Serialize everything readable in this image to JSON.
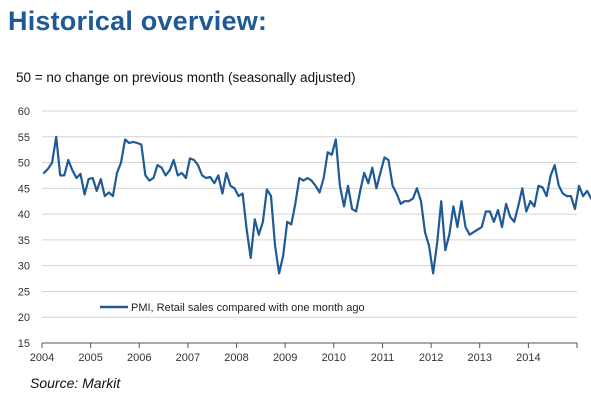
{
  "header": {
    "title": "Historical overview:",
    "subtitle": "50 = no change on previous month  (seasonally adjusted)"
  },
  "footer": {
    "source": "Source: Markit"
  },
  "chart_data": {
    "type": "line",
    "title": "",
    "xlabel": "",
    "ylabel": "",
    "ylim": [
      15,
      60
    ],
    "yticks": [
      15,
      20,
      25,
      30,
      35,
      40,
      45,
      50,
      55,
      60
    ],
    "xlim": [
      2004,
      2015
    ],
    "xticks": [
      "2004",
      "2005",
      "2006",
      "2007",
      "2008",
      "2009",
      "2010",
      "2011",
      "2012",
      "2013",
      "2014"
    ],
    "grid": "horizontal",
    "legend": "bottom-left",
    "colors": {
      "series": "#1f5a96",
      "grid": "#d4d4d4",
      "axis": "#555555"
    },
    "series": [
      {
        "name": "PMI, Retail sales compared with one month ago",
        "start": "2004-01",
        "frequency": "monthly",
        "values": [
          48.0,
          48.8,
          50.0,
          55.0,
          47.5,
          47.5,
          50.5,
          48.5,
          47.0,
          47.8,
          43.8,
          46.8,
          47.0,
          44.5,
          46.8,
          43.5,
          44.2,
          43.5,
          48.0,
          50.0,
          54.5,
          53.8,
          54.0,
          53.8,
          53.5,
          47.5,
          46.5,
          47.0,
          49.5,
          49.0,
          47.5,
          48.5,
          50.5,
          47.5,
          48.0,
          47.0,
          50.8,
          50.5,
          49.5,
          47.5,
          47.0,
          47.2,
          46.0,
          47.5,
          44.0,
          48.0,
          45.5,
          45.0,
          43.5,
          44.0,
          37.0,
          31.5,
          39.0,
          36.0,
          38.5,
          44.8,
          43.5,
          34.0,
          28.5,
          32.0,
          38.5,
          38.0,
          42.0,
          47.0,
          46.5,
          47.0,
          46.5,
          45.5,
          44.2,
          47.0,
          52.0,
          51.5,
          54.5,
          45.5,
          41.5,
          45.5,
          41.0,
          40.5,
          44.5,
          48.0,
          46.0,
          49.0,
          45.0,
          48.0,
          51.0,
          50.5,
          45.5,
          44.0,
          42.0,
          42.5,
          42.5,
          43.0,
          45.0,
          42.5,
          36.5,
          33.8,
          28.5,
          34.5,
          42.5,
          33.0,
          36.0,
          41.5,
          37.5,
          42.5,
          37.5,
          36.0,
          36.5,
          37.0,
          37.5,
          40.5,
          40.5,
          38.5,
          40.8,
          37.5,
          42.0,
          39.5,
          38.5,
          41.5,
          45.0,
          40.5,
          42.5,
          41.5,
          45.5,
          45.2,
          43.5,
          47.5,
          49.5,
          45.5,
          44.0,
          43.5,
          43.5,
          41.0,
          45.5,
          43.5,
          44.5,
          43.0
        ]
      }
    ]
  }
}
